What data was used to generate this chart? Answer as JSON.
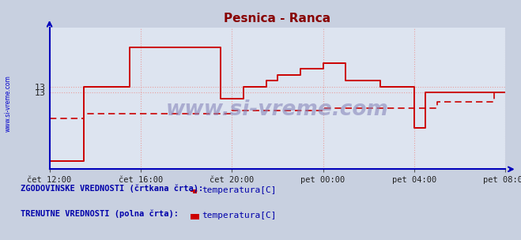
{
  "title": "Pesnica - Ranca",
  "title_color": "#880000",
  "bg_color": "#c8d0e0",
  "plot_bg_color": "#dde4f0",
  "axis_color": "#0000bb",
  "grid_color": "#e8a0a0",
  "watermark": "www.si-vreme.com",
  "solid_color": "#cc0000",
  "dashed_color": "#cc0000",
  "solid_x": [
    0.0,
    0.0,
    1.5,
    1.5,
    3.5,
    3.5,
    7.5,
    7.5,
    8.5,
    8.5,
    9.5,
    9.5,
    10.0,
    10.0,
    11.0,
    11.0,
    12.0,
    12.0,
    13.0,
    13.0,
    14.5,
    14.5,
    16.0,
    16.0,
    16.5,
    16.5,
    18.5,
    18.5,
    20.0
  ],
  "solid_y": [
    12.42,
    12.42,
    12.42,
    13.05,
    13.05,
    13.38,
    13.38,
    12.95,
    12.95,
    13.05,
    13.05,
    13.1,
    13.1,
    13.15,
    13.15,
    13.2,
    13.2,
    13.25,
    13.25,
    13.1,
    13.1,
    13.05,
    13.05,
    12.7,
    12.7,
    13.0,
    13.0,
    13.0,
    13.0
  ],
  "dashed_x": [
    0.0,
    1.5,
    1.5,
    8.0,
    8.0,
    12.0,
    12.0,
    17.0,
    17.0,
    19.5,
    19.5,
    20.0
  ],
  "dashed_y": [
    12.78,
    12.78,
    12.82,
    12.82,
    12.85,
    12.85,
    12.87,
    12.87,
    12.92,
    12.92,
    13.0,
    13.0
  ],
  "ylim_lo": 12.35,
  "ylim_hi": 13.55,
  "xlim_lo": 0,
  "xlim_hi": 20,
  "ytick_pos": [
    13.05,
    13.0
  ],
  "ytick_labels": [
    "13",
    "13"
  ],
  "xtick_pos": [
    0,
    4,
    8,
    12,
    16,
    20
  ],
  "xtick_labels": [
    "čet 12:00",
    "čet 16:00",
    "čet 20:00",
    "pet 00:00",
    "pet 04:00",
    "pet 08:00"
  ],
  "legend_hist_title": "ZGODOVINSKE VREDNOSTI (črtkana črta):",
  "legend_curr_title": "TRENUTNE VREDNOSTI (polna črta):",
  "legend_label": "temperatura[C]"
}
